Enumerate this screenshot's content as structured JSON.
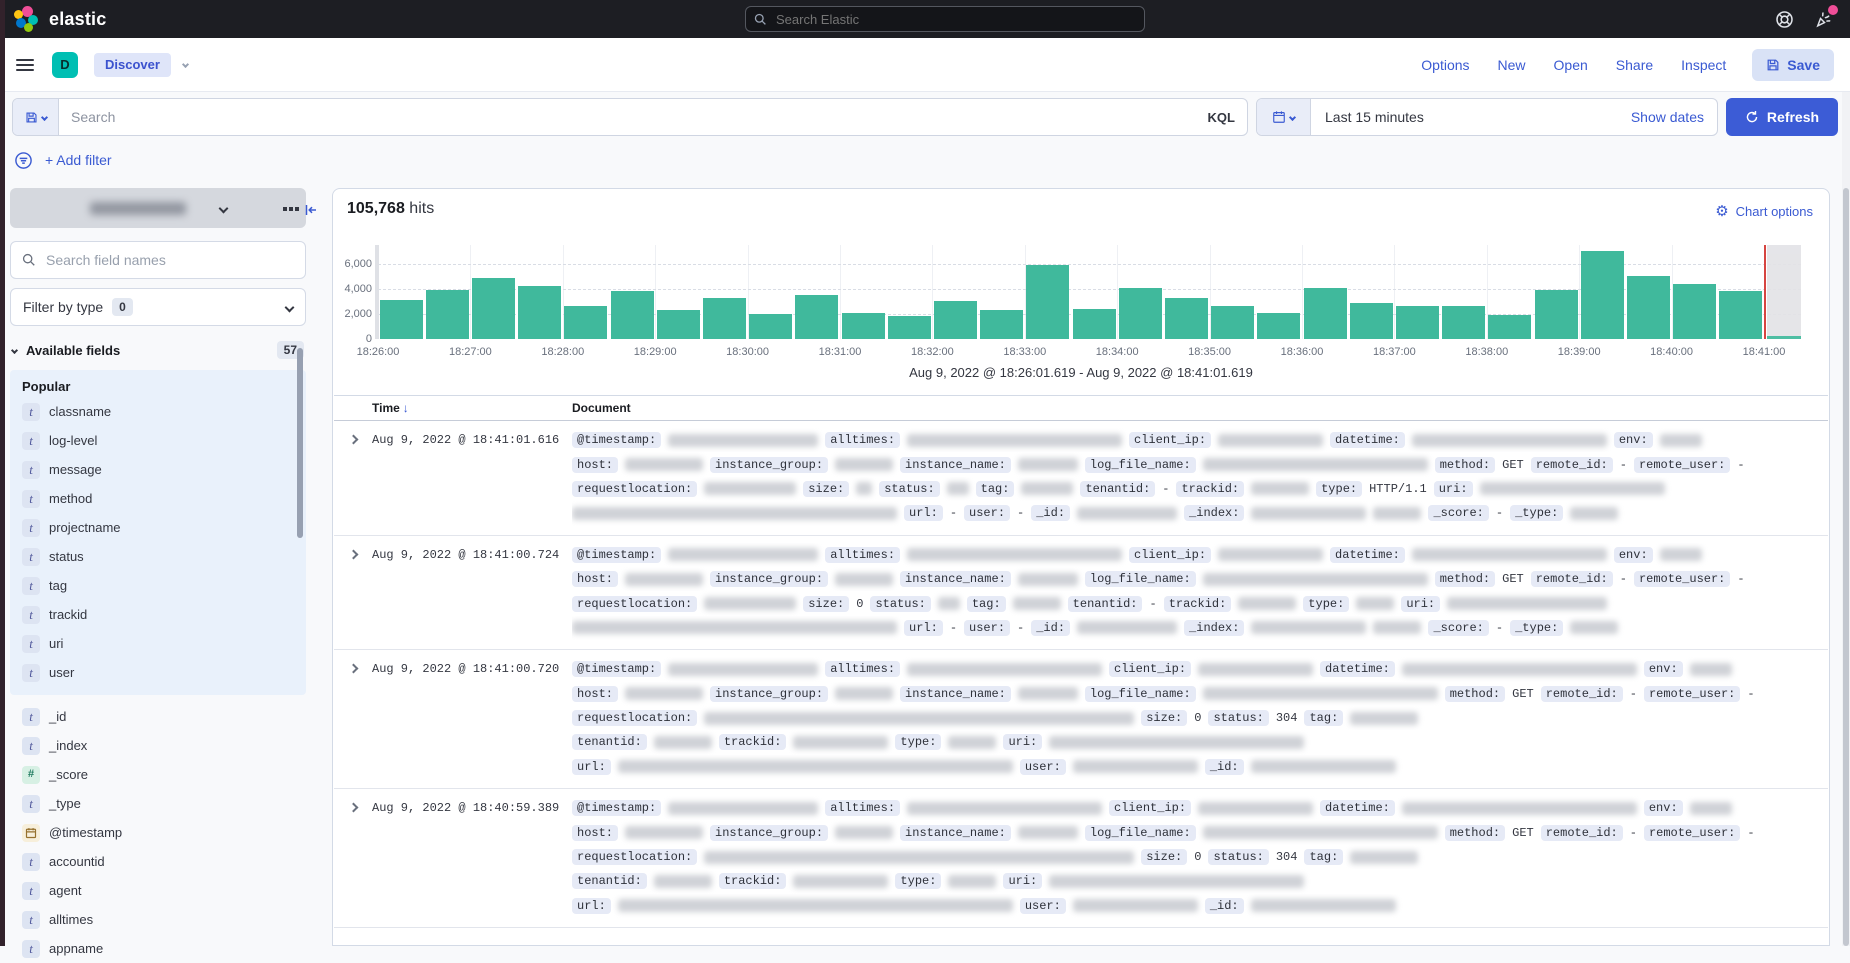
{
  "header": {
    "brand": "elastic",
    "search_placeholder": "Search Elastic"
  },
  "toolbar": {
    "breadcrumb_initial": "D",
    "breadcrumb": "Discover",
    "links": [
      "Options",
      "New",
      "Open",
      "Share",
      "Inspect"
    ],
    "save_label": "Save"
  },
  "querybar": {
    "search_placeholder": "Search",
    "kql_label": "KQL",
    "time_range": "Last 15 minutes",
    "show_dates_label": "Show dates",
    "refresh_label": "Refresh"
  },
  "filterbar": {
    "add_filter_label": "+ Add filter"
  },
  "sidebar": {
    "search_placeholder": "Search field names",
    "filter_by_type_label": "Filter by type",
    "filter_by_type_count": "0",
    "available_fields_label": "Available fields",
    "available_fields_count": "57",
    "popular_label": "Popular",
    "popular_fields": [
      {
        "type": "t",
        "name": "classname"
      },
      {
        "type": "t",
        "name": "log-level"
      },
      {
        "type": "t",
        "name": "message"
      },
      {
        "type": "t",
        "name": "method"
      },
      {
        "type": "t",
        "name": "projectname"
      },
      {
        "type": "t",
        "name": "status"
      },
      {
        "type": "t",
        "name": "tag"
      },
      {
        "type": "t",
        "name": "trackid"
      },
      {
        "type": "t",
        "name": "uri"
      },
      {
        "type": "t",
        "name": "user"
      }
    ],
    "fields": [
      {
        "type": "t",
        "name": "_id"
      },
      {
        "type": "t",
        "name": "_index"
      },
      {
        "type": "#",
        "name": "_score"
      },
      {
        "type": "t",
        "name": "_type"
      },
      {
        "type": "date",
        "name": "@timestamp"
      },
      {
        "type": "t",
        "name": "accountid"
      },
      {
        "type": "t",
        "name": "agent"
      },
      {
        "type": "t",
        "name": "alltimes"
      },
      {
        "type": "t",
        "name": "appname"
      }
    ]
  },
  "main": {
    "hits_count": "105,768",
    "hits_label": "hits",
    "chart_options_label": "Chart options",
    "time_range_caption": "Aug 9, 2022 @ 18:26:01.619 - Aug 9, 2022 @ 18:41:01.619"
  },
  "chart_data": {
    "type": "bar",
    "title": "Histogram of document counts over time",
    "x_start": "18:26:00",
    "x_end": "18:41:00",
    "bucket_interval_seconds": 30,
    "x_tick_labels": [
      "18:26:00",
      "18:27:00",
      "18:28:00",
      "18:29:00",
      "18:30:00",
      "18:31:00",
      "18:32:00",
      "18:33:00",
      "18:34:00",
      "18:35:00",
      "18:36:00",
      "18:37:00",
      "18:38:00",
      "18:39:00",
      "18:40:00",
      "18:41:00"
    ],
    "values": [
      3100,
      3900,
      4900,
      4200,
      2650,
      3850,
      2300,
      3300,
      2000,
      3550,
      2100,
      1850,
      3000,
      2350,
      5900,
      2400,
      4050,
      3300,
      2650,
      2100,
      4100,
      2900,
      2650,
      2600,
      1900,
      3900,
      7000,
      5000,
      4400,
      3800
    ],
    "partial_bucket_value": 120,
    "ylim": [
      0,
      7500
    ],
    "y_ticks": [
      0,
      2000,
      4000,
      6000
    ],
    "bar_color": "#40b99c",
    "current_time_marker_color": "#d64541",
    "incomplete_area_color": "#e3e3e7",
    "grid": true
  },
  "table": {
    "columns": [
      "Time",
      "Document"
    ],
    "rows": [
      {
        "time": "Aug 9, 2022 @ 18:41:01.616",
        "lines": [
          [
            {
              "label": "@timestamp:"
            },
            {
              "blur": 150
            },
            {
              "label": "alltimes:"
            },
            {
              "blur": 215
            },
            {
              "label": "client_ip:"
            },
            {
              "blur": 105
            },
            {
              "label": "datetime:"
            },
            {
              "blur": 195
            },
            {
              "label": "env:"
            },
            {
              "blur": 42
            }
          ],
          [
            {
              "label": "host:"
            },
            {
              "blur": 78
            },
            {
              "label": "instance_group:"
            },
            {
              "blur": 58
            },
            {
              "label": "instance_name:"
            },
            {
              "blur": 60
            },
            {
              "label": "log_file_name:"
            },
            {
              "blur": 225
            },
            {
              "label": "method:"
            },
            {
              "text": "GET"
            },
            {
              "label": "remote_id:"
            },
            {
              "text": "-"
            },
            {
              "label": "remote_user:"
            },
            {
              "text": "-"
            }
          ],
          [
            {
              "label": "requestlocation:"
            },
            {
              "blur": 92
            },
            {
              "label": "size:"
            },
            {
              "blur": 16
            },
            {
              "label": "status:"
            },
            {
              "blur": 22
            },
            {
              "label": "tag:"
            },
            {
              "blur": 52
            },
            {
              "label": "tenantid:"
            },
            {
              "text": "-"
            },
            {
              "label": "trackid:"
            },
            {
              "blur": 58
            },
            {
              "label": "type:"
            },
            {
              "text": "HTTP/1.1"
            },
            {
              "label": "uri:"
            },
            {
              "blur": 185
            }
          ],
          [
            {
              "blur": 325
            },
            {
              "label": "url:"
            },
            {
              "text": "-"
            },
            {
              "label": "user:"
            },
            {
              "text": "-"
            },
            {
              "label": "_id:"
            },
            {
              "blur": 100
            },
            {
              "label": "_index:"
            },
            {
              "blur": 115
            },
            {
              "blur": 48
            },
            {
              "label": "_score:"
            },
            {
              "text": "-"
            },
            {
              "label": "_type:"
            },
            {
              "blur": 48
            }
          ]
        ]
      },
      {
        "time": "Aug 9, 2022 @ 18:41:00.724",
        "lines": [
          [
            {
              "label": "@timestamp:"
            },
            {
              "blur": 150
            },
            {
              "label": "alltimes:"
            },
            {
              "blur": 215
            },
            {
              "label": "client_ip:"
            },
            {
              "blur": 105
            },
            {
              "label": "datetime:"
            },
            {
              "blur": 195
            },
            {
              "label": "env:"
            },
            {
              "blur": 42
            }
          ],
          [
            {
              "label": "host:"
            },
            {
              "blur": 78
            },
            {
              "label": "instance_group:"
            },
            {
              "blur": 58
            },
            {
              "label": "instance_name:"
            },
            {
              "blur": 60
            },
            {
              "label": "log_file_name:"
            },
            {
              "blur": 225
            },
            {
              "label": "method:"
            },
            {
              "text": "GET"
            },
            {
              "label": "remote_id:"
            },
            {
              "text": "-"
            },
            {
              "label": "remote_user:"
            },
            {
              "text": "-"
            }
          ],
          [
            {
              "label": "requestlocation:"
            },
            {
              "blur": 92
            },
            {
              "label": "size:"
            },
            {
              "text": "0"
            },
            {
              "label": "status:"
            },
            {
              "blur": 22
            },
            {
              "label": "tag:"
            },
            {
              "blur": 48
            },
            {
              "label": "tenantid:"
            },
            {
              "text": "-"
            },
            {
              "label": "trackid:"
            },
            {
              "blur": 58
            },
            {
              "label": "type:"
            },
            {
              "blur": 38
            },
            {
              "label": "uri:"
            },
            {
              "blur": 160
            }
          ],
          [
            {
              "blur": 325
            },
            {
              "label": "url:"
            },
            {
              "text": "-"
            },
            {
              "label": "user:"
            },
            {
              "text": "-"
            },
            {
              "label": "_id:"
            },
            {
              "blur": 100
            },
            {
              "label": "_index:"
            },
            {
              "blur": 115
            },
            {
              "blur": 48
            },
            {
              "label": "_score:"
            },
            {
              "text": "-"
            },
            {
              "label": "_type:"
            },
            {
              "blur": 48
            }
          ]
        ]
      },
      {
        "time": "Aug 9, 2022 @ 18:41:00.720",
        "lines": [
          [
            {
              "label": "@timestamp:"
            },
            {
              "blur": 150
            },
            {
              "label": "alltimes:"
            },
            {
              "blur": 195
            },
            {
              "label": "client_ip:"
            },
            {
              "blur": 115
            },
            {
              "label": "datetime:"
            },
            {
              "blur": 235
            },
            {
              "label": "env:"
            },
            {
              "blur": 42
            }
          ],
          [
            {
              "label": "host:"
            },
            {
              "blur": 78
            },
            {
              "label": "instance_group:"
            },
            {
              "blur": 58
            },
            {
              "label": "instance_name:"
            },
            {
              "blur": 60
            },
            {
              "label": "log_file_name:"
            },
            {
              "blur": 235
            },
            {
              "label": "method:"
            },
            {
              "text": "GET"
            },
            {
              "label": "remote_id:"
            },
            {
              "text": "-"
            },
            {
              "label": "remote_user:"
            },
            {
              "text": "-"
            }
          ],
          [
            {
              "label": "requestlocation:"
            },
            {
              "blur": 430
            },
            {
              "label": "size:"
            },
            {
              "text": "0"
            },
            {
              "label": "status:"
            },
            {
              "text": "304"
            },
            {
              "label": "tag:"
            },
            {
              "blur": 68
            }
          ],
          [
            {
              "label": "tenantid:"
            },
            {
              "blur": 58
            },
            {
              "label": "trackid:"
            },
            {
              "blur": 95
            },
            {
              "label": "type:"
            },
            {
              "blur": 48
            },
            {
              "label": "uri:"
            },
            {
              "blur": 255
            }
          ],
          [
            {
              "label": "url:"
            },
            {
              "blur": 395
            },
            {
              "label": "user:"
            },
            {
              "blur": 125
            },
            {
              "label": "_id:"
            },
            {
              "blur": 145
            }
          ]
        ]
      },
      {
        "time": "Aug 9, 2022 @ 18:40:59.389",
        "lines": [
          [
            {
              "label": "@timestamp:"
            },
            {
              "blur": 150
            },
            {
              "label": "alltimes:"
            },
            {
              "blur": 195
            },
            {
              "label": "client_ip:"
            },
            {
              "blur": 115
            },
            {
              "label": "datetime:"
            },
            {
              "blur": 235
            },
            {
              "label": "env:"
            },
            {
              "blur": 42
            }
          ],
          [
            {
              "label": "host:"
            },
            {
              "blur": 78
            },
            {
              "label": "instance_group:"
            },
            {
              "blur": 58
            },
            {
              "label": "instance_name:"
            },
            {
              "blur": 60
            },
            {
              "label": "log_file_name:"
            },
            {
              "blur": 235
            },
            {
              "label": "method:"
            },
            {
              "text": "GET"
            },
            {
              "label": "remote_id:"
            },
            {
              "text": "-"
            },
            {
              "label": "remote_user:"
            },
            {
              "text": "-"
            }
          ],
          [
            {
              "label": "requestlocation:"
            },
            {
              "blur": 430
            },
            {
              "label": "size:"
            },
            {
              "text": "0"
            },
            {
              "label": "status:"
            },
            {
              "text": "304"
            },
            {
              "label": "tag:"
            },
            {
              "blur": 68
            }
          ],
          [
            {
              "label": "tenantid:"
            },
            {
              "blur": 58
            },
            {
              "label": "trackid:"
            },
            {
              "blur": 95
            },
            {
              "label": "type:"
            },
            {
              "blur": 48
            },
            {
              "label": "uri:"
            },
            {
              "blur": 255
            }
          ],
          [
            {
              "label": "url:"
            },
            {
              "blur": 395
            },
            {
              "label": "user:"
            },
            {
              "blur": 125
            },
            {
              "label": "_id:"
            },
            {
              "blur": 145
            }
          ]
        ]
      }
    ]
  },
  "colors": {
    "accent_link": "#3a5ad2",
    "primary_button": "#3c5cd6",
    "bar_teal": "#40b99c",
    "now_marker_red": "#d64541",
    "breadcrumb_bg": "#dfe5f9",
    "space_badge_teal": "#00bfb3",
    "notification_pink": "#f04e98",
    "header_dark": "#1d1e23"
  }
}
